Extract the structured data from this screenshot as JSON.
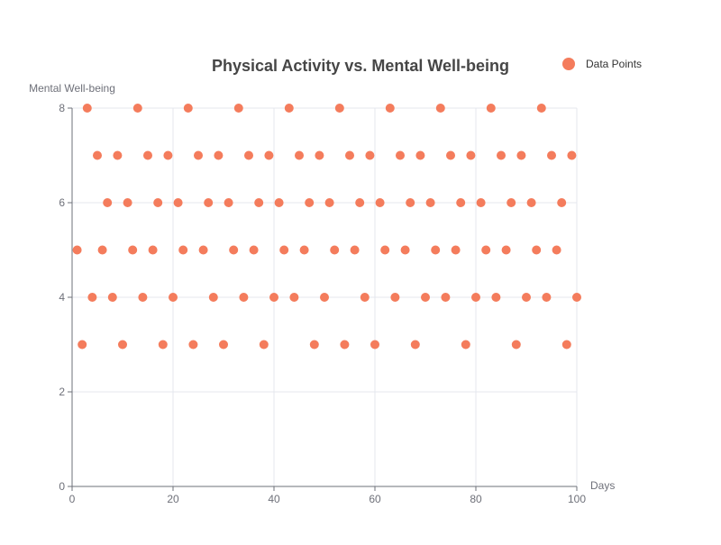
{
  "chart_data": {
    "type": "scatter",
    "title": "Physical Activity vs. Mental Well-being",
    "xlabel": "Days",
    "ylabel": "Mental Well-being",
    "xlim": [
      0,
      100
    ],
    "ylim": [
      0,
      8
    ],
    "x_ticks": [
      0,
      20,
      40,
      60,
      80,
      100
    ],
    "y_ticks": [
      0,
      2,
      4,
      6,
      8
    ],
    "grid": true,
    "legend_position": "top-right",
    "series": [
      {
        "name": "Data Points",
        "color": "#f47c5c",
        "x": [
          1,
          2,
          3,
          4,
          5,
          6,
          7,
          8,
          9,
          10,
          11,
          12,
          13,
          14,
          15,
          16,
          17,
          18,
          19,
          20,
          21,
          22,
          23,
          24,
          25,
          26,
          27,
          28,
          29,
          30,
          31,
          32,
          33,
          34,
          35,
          36,
          37,
          38,
          39,
          40,
          41,
          42,
          43,
          44,
          45,
          46,
          47,
          48,
          49,
          50,
          51,
          52,
          53,
          54,
          55,
          56,
          57,
          58,
          59,
          60,
          61,
          62,
          63,
          64,
          65,
          66,
          67,
          68,
          69,
          70,
          71,
          72,
          73,
          74,
          75,
          76,
          77,
          78,
          79,
          80,
          81,
          82,
          83,
          84,
          85,
          86,
          87,
          88,
          89,
          90,
          91,
          92,
          93,
          94,
          95,
          96,
          97,
          98,
          99,
          100
        ],
        "y": [
          5,
          3,
          8,
          4,
          7,
          5,
          6,
          4,
          7,
          3,
          6,
          5,
          8,
          4,
          7,
          5,
          6,
          3,
          7,
          4,
          6,
          5,
          8,
          3,
          7,
          5,
          6,
          4,
          7,
          3,
          6,
          5,
          8,
          4,
          7,
          5,
          6,
          3,
          7,
          4,
          6,
          5,
          8,
          4,
          7,
          5,
          6,
          3,
          7,
          4,
          6,
          5,
          8,
          3,
          7,
          5,
          6,
          4,
          7,
          3,
          6,
          5,
          8,
          4,
          7,
          5,
          6,
          3,
          7,
          4,
          6,
          5,
          8,
          4,
          7,
          5,
          6,
          3,
          7,
          4,
          6,
          5,
          8,
          4,
          7,
          5,
          6,
          3,
          7,
          4,
          6,
          5,
          8,
          4,
          7,
          5,
          6,
          3,
          7,
          4
        ]
      }
    ]
  }
}
